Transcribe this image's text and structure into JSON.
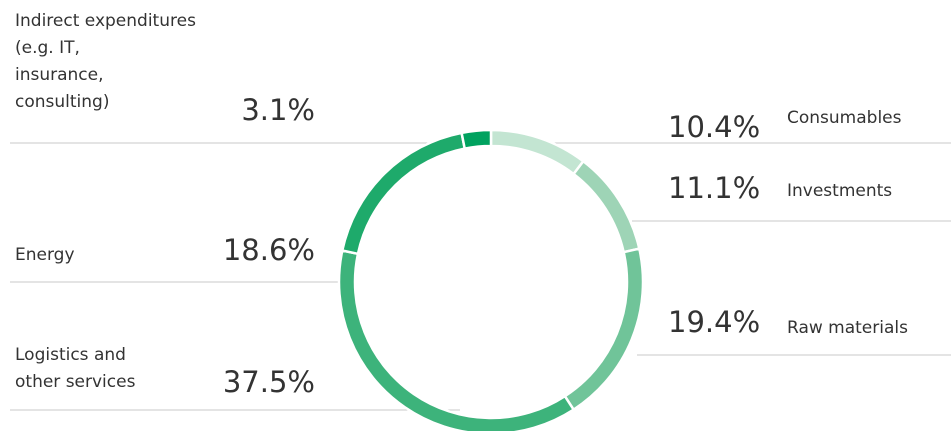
{
  "chart_data": {
    "type": "donut",
    "categories": [
      "Consumables",
      "Investments",
      "Raw materials",
      "Logistics and\nother services",
      "Energy",
      "Indirect expenditures\n(e.g. IT,\ninsurance,\nconsulting)"
    ],
    "values": [
      10.4,
      11.1,
      19.4,
      37.5,
      18.6,
      3.1
    ],
    "value_labels": [
      "10.4%",
      "11.1%",
      "19.4%",
      "37.5%",
      "18.6%",
      "3.1%"
    ],
    "colors": [
      "#c3e5d2",
      "#9ed4b6",
      "#70c499",
      "#3db37b",
      "#1eaa6b",
      "#00a25f"
    ]
  }
}
